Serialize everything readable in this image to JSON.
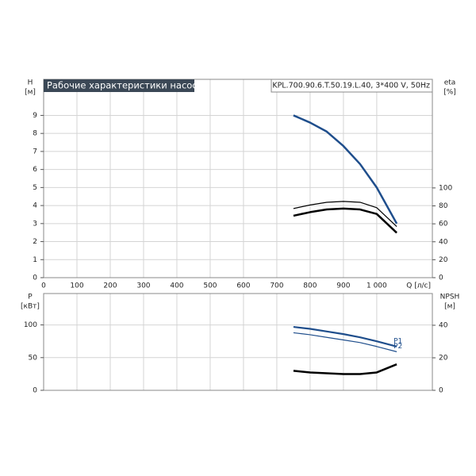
{
  "chart_data": [
    {
      "type": "line",
      "title": "Рабочие характеристики насоса",
      "subtitle": "KPL.700.90.6.T.50.19.L.40, 3*400 V, 50Hz",
      "ylabel": [
        "H",
        "[м]"
      ],
      "y2label": [
        "eta",
        "[%]"
      ],
      "xlabel": "Q [л/с]",
      "x": [
        750,
        800,
        850,
        900,
        950,
        1000,
        1060
      ],
      "xlim": [
        0,
        1167
      ],
      "xticks": [
        0,
        100,
        200,
        300,
        400,
        500,
        600,
        700,
        800,
        900,
        {
          "value": 1000,
          "label": "1 000"
        }
      ],
      "ylim": [
        0,
        11
      ],
      "yticks": [
        0,
        1,
        2,
        3,
        4,
        5,
        6,
        7,
        8,
        9
      ],
      "y2lim": [
        0,
        221
      ],
      "y2ticks": [
        0,
        20,
        40,
        60,
        80,
        100
      ],
      "grid": true,
      "series": [
        {
          "color": "#1f4e8c",
          "values": [
            9,
            8.6,
            8.1,
            7.3,
            6.3,
            5.0,
            3.0
          ]
        },
        {
          "color": "#000000",
          "axis": "y2",
          "values": [
            77,
            81,
            84,
            85,
            84,
            78,
            57
          ]
        },
        {
          "color": "#000000",
          "axis": "y2",
          "values": [
            69,
            73,
            76,
            77,
            76,
            71,
            50
          ]
        }
      ]
    },
    {
      "type": "line",
      "ylabel": [
        "P",
        "[кВт]"
      ],
      "y2label": [
        "NPSH",
        "[м]"
      ],
      "x": [
        750,
        800,
        850,
        900,
        950,
        1000,
        1060
      ],
      "xlim": [
        0,
        1167
      ],
      "xticks": [
        0,
        100,
        200,
        300,
        400,
        500,
        600,
        700,
        800,
        900,
        1000
      ],
      "ylim": [
        0,
        148
      ],
      "yticks": [
        0,
        50,
        100
      ],
      "y2lim": [
        0,
        59.5
      ],
      "y2ticks": [
        0,
        20,
        40
      ],
      "grid": true,
      "series": [
        {
          "name": "P1",
          "color": "#1f4e8c",
          "values": [
            97,
            94,
            90,
            86,
            81,
            75,
            67
          ]
        },
        {
          "name": "P2",
          "color": "#1f4e8c",
          "values": [
            88,
            85,
            81,
            77,
            73,
            67,
            59
          ]
        },
        {
          "color": "#000000",
          "axis": "y2",
          "values": [
            12,
            11,
            10.5,
            10,
            10,
            11,
            16
          ]
        }
      ]
    }
  ]
}
